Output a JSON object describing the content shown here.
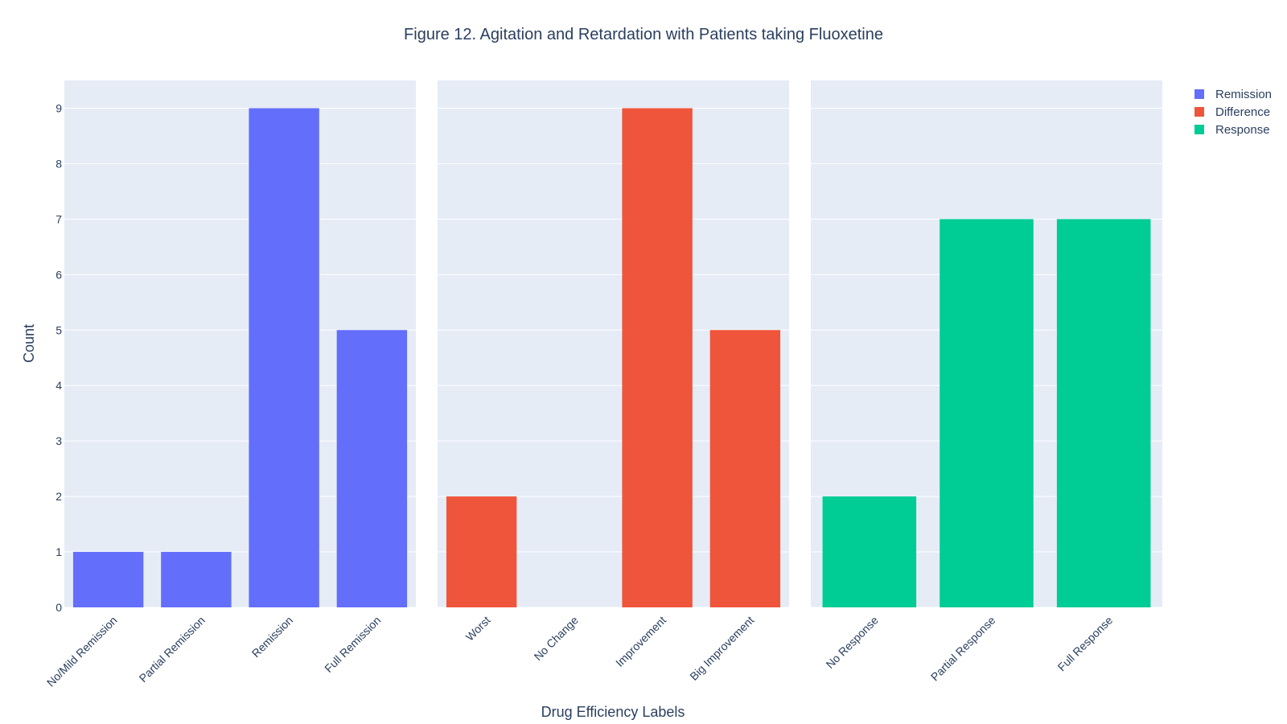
{
  "chart_data": {
    "type": "bar",
    "title": "Figure 12. Agitation and Retardation with Patients taking Fluoxetine",
    "xlabel": "Drug Efficiency Labels",
    "ylabel": "Count",
    "ylim": [
      0,
      9.5
    ],
    "yticks": [
      0,
      1,
      2,
      3,
      4,
      5,
      6,
      7,
      8,
      9
    ],
    "grid": true,
    "legend_position": "top-right",
    "panels": [
      {
        "series_name": "Remission",
        "color": "#636efa",
        "categories": [
          "No/Mild Remission",
          "Partial Remission",
          "Remission",
          "Full Remission"
        ],
        "values": [
          1,
          1,
          9,
          5
        ]
      },
      {
        "series_name": "Difference",
        "color": "#ef553b",
        "categories": [
          "Worst",
          "No Change",
          "Improvement",
          "Big Improvement"
        ],
        "values": [
          2,
          0,
          9,
          5
        ]
      },
      {
        "series_name": "Response",
        "color": "#00cc96",
        "categories": [
          "No Response",
          "Partial Response",
          "Full Response"
        ],
        "values": [
          2,
          7,
          7
        ]
      }
    ]
  }
}
